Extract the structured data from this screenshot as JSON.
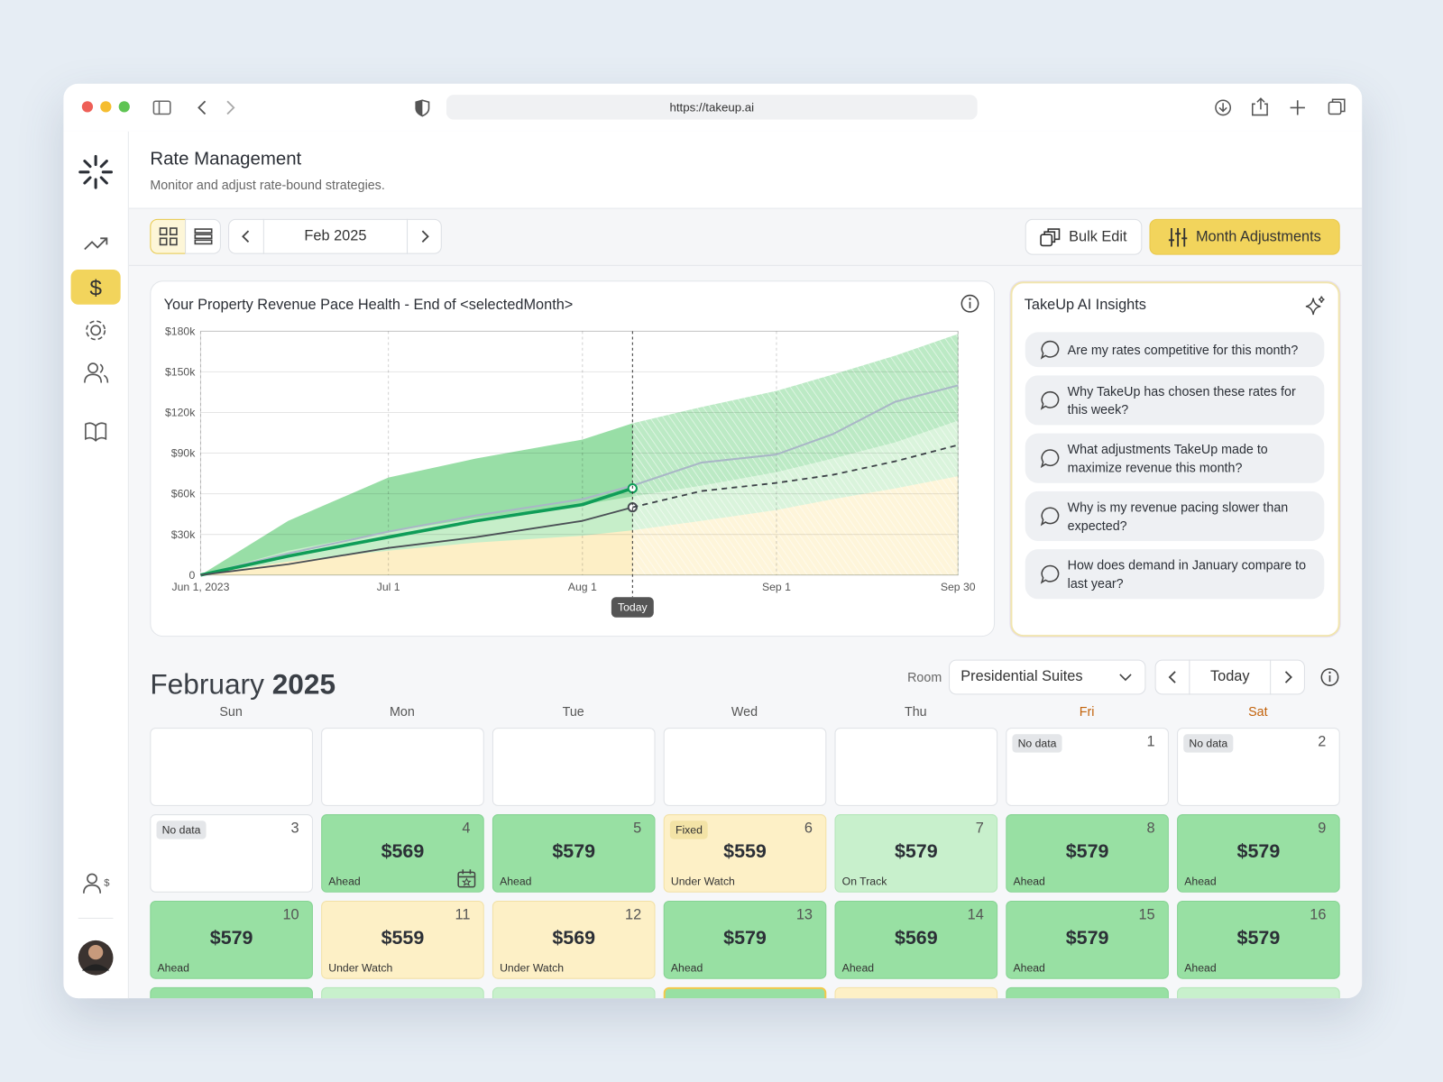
{
  "browser": {
    "url": "https://takeup.ai"
  },
  "header": {
    "title": "Rate Management",
    "subtitle": "Monitor and adjust rate-bound strategies."
  },
  "toolbar": {
    "month": "Feb 2025",
    "bulk_edit": "Bulk Edit",
    "month_adjustments": "Month Adjustments"
  },
  "chart_data": {
    "type": "line",
    "title": "Your Property Revenue Pace Health - End of <selectedMonth>",
    "x": [
      "2023-06-01",
      "2023-06-15",
      "2023-07-01",
      "2023-07-15",
      "2023-08-01",
      "2023-08-09",
      "2023-08-20",
      "2023-09-01",
      "2023-09-10",
      "2023-09-20",
      "2023-09-30"
    ],
    "series": [
      {
        "kind": "area",
        "color": "#98dea6",
        "values": [
          0,
          40000,
          72000,
          86000,
          100000,
          112000,
          124000,
          136000,
          148000,
          162000,
          178000
        ]
      },
      {
        "kind": "area",
        "color": "#c6eec9",
        "values": [
          0,
          18000,
          32000,
          42000,
          52000,
          58000,
          66000,
          76000,
          86000,
          98000,
          114000
        ]
      },
      {
        "kind": "area",
        "color": "#fdefc6",
        "values": [
          0,
          10000,
          18000,
          24000,
          29000,
          33000,
          40000,
          48000,
          56000,
          64000,
          73000
        ]
      },
      {
        "kind": "line",
        "color": "#a9b6c6",
        "width": 2,
        "values": [
          0,
          16000,
          32000,
          44000,
          56000,
          66000,
          83000,
          89000,
          104000,
          128000,
          140000
        ]
      },
      {
        "kind": "line",
        "color": "#0f9d58",
        "width": 3.5,
        "marker": true,
        "values": [
          0,
          14000,
          28000,
          40000,
          52000,
          64000,
          null,
          null,
          null,
          null,
          null
        ]
      },
      {
        "kind": "line",
        "color": "#4a4f55",
        "width": 1.8,
        "marker": true,
        "values": [
          0,
          8000,
          20000,
          28000,
          40000,
          50000,
          null,
          null,
          null,
          null,
          null
        ]
      },
      {
        "kind": "line",
        "color": "#3d4248",
        "width": 1.8,
        "dashed": true,
        "values": [
          null,
          null,
          null,
          null,
          null,
          50000,
          62000,
          68000,
          74000,
          84000,
          96000
        ]
      }
    ],
    "xlim": [
      "2023-06-01",
      "2023-09-30"
    ],
    "xticks": [
      {
        "value": "2023-06-01",
        "label": "Jun 1, 2023"
      },
      {
        "value": "2023-07-01",
        "label": "Jul 1"
      },
      {
        "value": "2023-08-01",
        "label": "Aug 1"
      },
      {
        "value": "2023-09-01",
        "label": "Sep 1"
      },
      {
        "value": "2023-09-30",
        "label": "Sep 30"
      }
    ],
    "ylim": [
      0,
      180000
    ],
    "yticks": [
      0,
      {
        "value": 30000,
        "label": "$30k"
      },
      {
        "value": 60000,
        "label": "$60k"
      },
      {
        "value": 90000,
        "label": "$90k"
      },
      {
        "value": 120000,
        "label": "$120k"
      },
      {
        "value": 150000,
        "label": "$150k"
      },
      {
        "value": 180000,
        "label": "$180k"
      }
    ],
    "grid": true,
    "today_label": "Today"
  },
  "insights": {
    "title": "TakeUp AI Insights",
    "questions": [
      "Are my rates competitive for this month?",
      "Why TakeUp has chosen these rates for this week?",
      "What adjustments TakeUp made to maximize revenue this month?",
      "Why is my revenue pacing slower than expected?",
      "How does demand in January compare to last year?"
    ]
  },
  "calendar": {
    "month": "February",
    "year": "2025",
    "room_label": "Room",
    "room": "Presidential Suites",
    "today": "Today",
    "weekdays": [
      "Sun",
      "Mon",
      "Tue",
      "Wed",
      "Thu",
      "Fri",
      "Sat"
    ],
    "weeks": [
      [
        null,
        null,
        null,
        null,
        null,
        {
          "day": 1,
          "tag": "No data"
        },
        {
          "day": 2,
          "tag": "No data"
        }
      ],
      [
        {
          "day": 3,
          "tag": "No data"
        },
        {
          "day": 4,
          "price": "$569",
          "status": "Ahead"
        },
        {
          "day": 5,
          "price": "$579",
          "status": "Ahead"
        },
        {
          "day": 6,
          "tag": "Fixed",
          "price": "$559",
          "status": "Under Watch"
        },
        {
          "day": 7,
          "price": "$579",
          "status": "On Track"
        },
        {
          "day": 8,
          "price": "$579",
          "status": "Ahead"
        },
        {
          "day": 9,
          "price": "$579",
          "status": "Ahead"
        }
      ],
      [
        {
          "day": 10,
          "price": "$579",
          "status": "Ahead"
        },
        {
          "day": 11,
          "price": "$559",
          "status": "Under Watch"
        },
        {
          "day": 12,
          "price": "$569",
          "status": "Under Watch"
        },
        {
          "day": 13,
          "price": "$579",
          "status": "Ahead"
        },
        {
          "day": 14,
          "price": "$569",
          "status": "Ahead"
        },
        {
          "day": 15,
          "price": "$579",
          "status": "Ahead"
        },
        {
          "day": 16,
          "price": "$579",
          "status": "Ahead"
        }
      ]
    ]
  }
}
